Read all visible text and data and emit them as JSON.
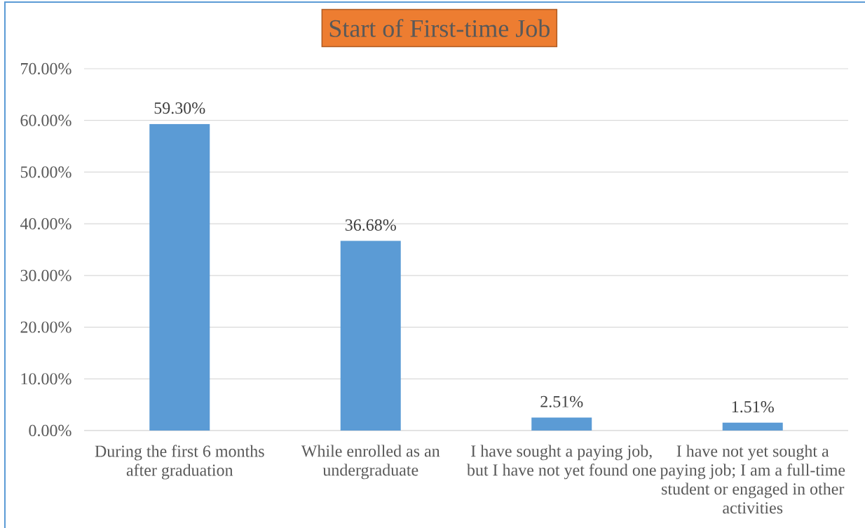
{
  "chart_data": {
    "type": "bar",
    "title": "Start of First-time Job",
    "categories": [
      "During the first 6 months after graduation",
      "While enrolled as an undergraduate",
      "I have sought a paying job, but I have not yet found one",
      "I have not yet sought a paying job; I am a full-time student or engaged in other activities"
    ],
    "values": [
      59.3,
      36.68,
      2.51,
      1.51
    ],
    "color": "#5b9bd5",
    "value_labels": [
      "59.30%",
      "36.68%",
      "2.51%",
      "1.51%"
    ],
    "ylim": [
      0,
      70
    ],
    "yticks": [
      {
        "value": 0,
        "label": "0.00%"
      },
      {
        "value": 10,
        "label": "10.00%"
      },
      {
        "value": 20,
        "label": "20.00%"
      },
      {
        "value": 30,
        "label": "30.00%"
      },
      {
        "value": 40,
        "label": "40.00%"
      },
      {
        "value": 50,
        "label": "50.00%"
      },
      {
        "value": 60,
        "label": "60.00%"
      },
      {
        "value": 70,
        "label": "70.00%"
      }
    ],
    "grid": "y"
  }
}
